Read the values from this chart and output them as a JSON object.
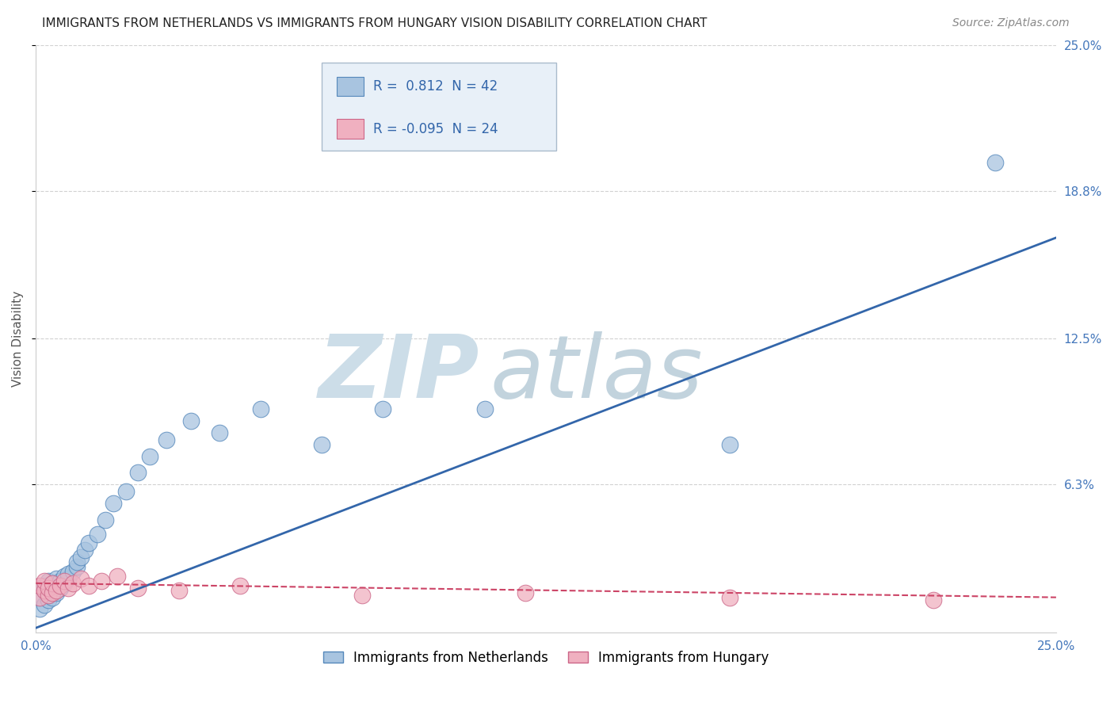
{
  "title": "IMMIGRANTS FROM NETHERLANDS VS IMMIGRANTS FROM HUNGARY VISION DISABILITY CORRELATION CHART",
  "source": "Source: ZipAtlas.com",
  "ylabel": "Vision Disability",
  "xlim": [
    0.0,
    0.25
  ],
  "ylim": [
    0.0,
    0.25
  ],
  "xtick_labels": [
    "0.0%",
    "25.0%"
  ],
  "ytick_labels": [
    "6.3%",
    "12.5%",
    "18.8%",
    "25.0%"
  ],
  "ytick_vals": [
    0.063,
    0.125,
    0.188,
    0.25
  ],
  "xtick_vals": [
    0.0,
    0.25
  ],
  "nl_color": "#a8c4e0",
  "nl_edge": "#5588bb",
  "nl_line": "#3366aa",
  "hu_color": "#f0b0c0",
  "hu_edge": "#cc6688",
  "hu_line": "#cc4466",
  "nl_label": "Immigrants from Netherlands",
  "hu_label": "Immigrants from Hungary",
  "nl_R": 0.812,
  "nl_N": 42,
  "hu_R": -0.095,
  "hu_N": 24,
  "nl_x": [
    0.001,
    0.001,
    0.002,
    0.002,
    0.002,
    0.003,
    0.003,
    0.003,
    0.003,
    0.004,
    0.004,
    0.004,
    0.005,
    0.005,
    0.005,
    0.006,
    0.006,
    0.007,
    0.007,
    0.008,
    0.008,
    0.009,
    0.01,
    0.01,
    0.011,
    0.012,
    0.013,
    0.015,
    0.017,
    0.019,
    0.022,
    0.025,
    0.028,
    0.032,
    0.038,
    0.045,
    0.055,
    0.07,
    0.085,
    0.11,
    0.17,
    0.235
  ],
  "nl_y": [
    0.01,
    0.015,
    0.012,
    0.018,
    0.02,
    0.014,
    0.016,
    0.019,
    0.022,
    0.015,
    0.018,
    0.021,
    0.017,
    0.02,
    0.023,
    0.019,
    0.022,
    0.021,
    0.024,
    0.023,
    0.025,
    0.026,
    0.028,
    0.03,
    0.032,
    0.035,
    0.038,
    0.042,
    0.048,
    0.055,
    0.06,
    0.068,
    0.075,
    0.082,
    0.09,
    0.085,
    0.095,
    0.08,
    0.095,
    0.095,
    0.08,
    0.2
  ],
  "hu_x": [
    0.001,
    0.001,
    0.002,
    0.002,
    0.003,
    0.003,
    0.004,
    0.004,
    0.005,
    0.006,
    0.007,
    0.008,
    0.009,
    0.011,
    0.013,
    0.016,
    0.02,
    0.025,
    0.035,
    0.05,
    0.08,
    0.12,
    0.17,
    0.22
  ],
  "hu_y": [
    0.015,
    0.02,
    0.018,
    0.022,
    0.016,
    0.019,
    0.017,
    0.021,
    0.018,
    0.02,
    0.022,
    0.019,
    0.021,
    0.023,
    0.02,
    0.022,
    0.024,
    0.019,
    0.018,
    0.02,
    0.016,
    0.017,
    0.015,
    0.014
  ],
  "nl_trend_x": [
    0.0,
    0.25
  ],
  "nl_trend_y": [
    0.002,
    0.168
  ],
  "hu_trend_x": [
    0.0,
    0.25
  ],
  "hu_trend_y": [
    0.021,
    0.015
  ],
  "watermark_zip_color": "#ccdde8",
  "watermark_atlas_color": "#b8ccd8",
  "legend_box_color": "#e8f0f8",
  "legend_border_color": "#aabbcc",
  "title_fontsize": 11,
  "axis_label_fontsize": 11,
  "tick_fontsize": 11,
  "legend_fontsize": 12,
  "source_fontsize": 10,
  "grid_color": "#cccccc"
}
